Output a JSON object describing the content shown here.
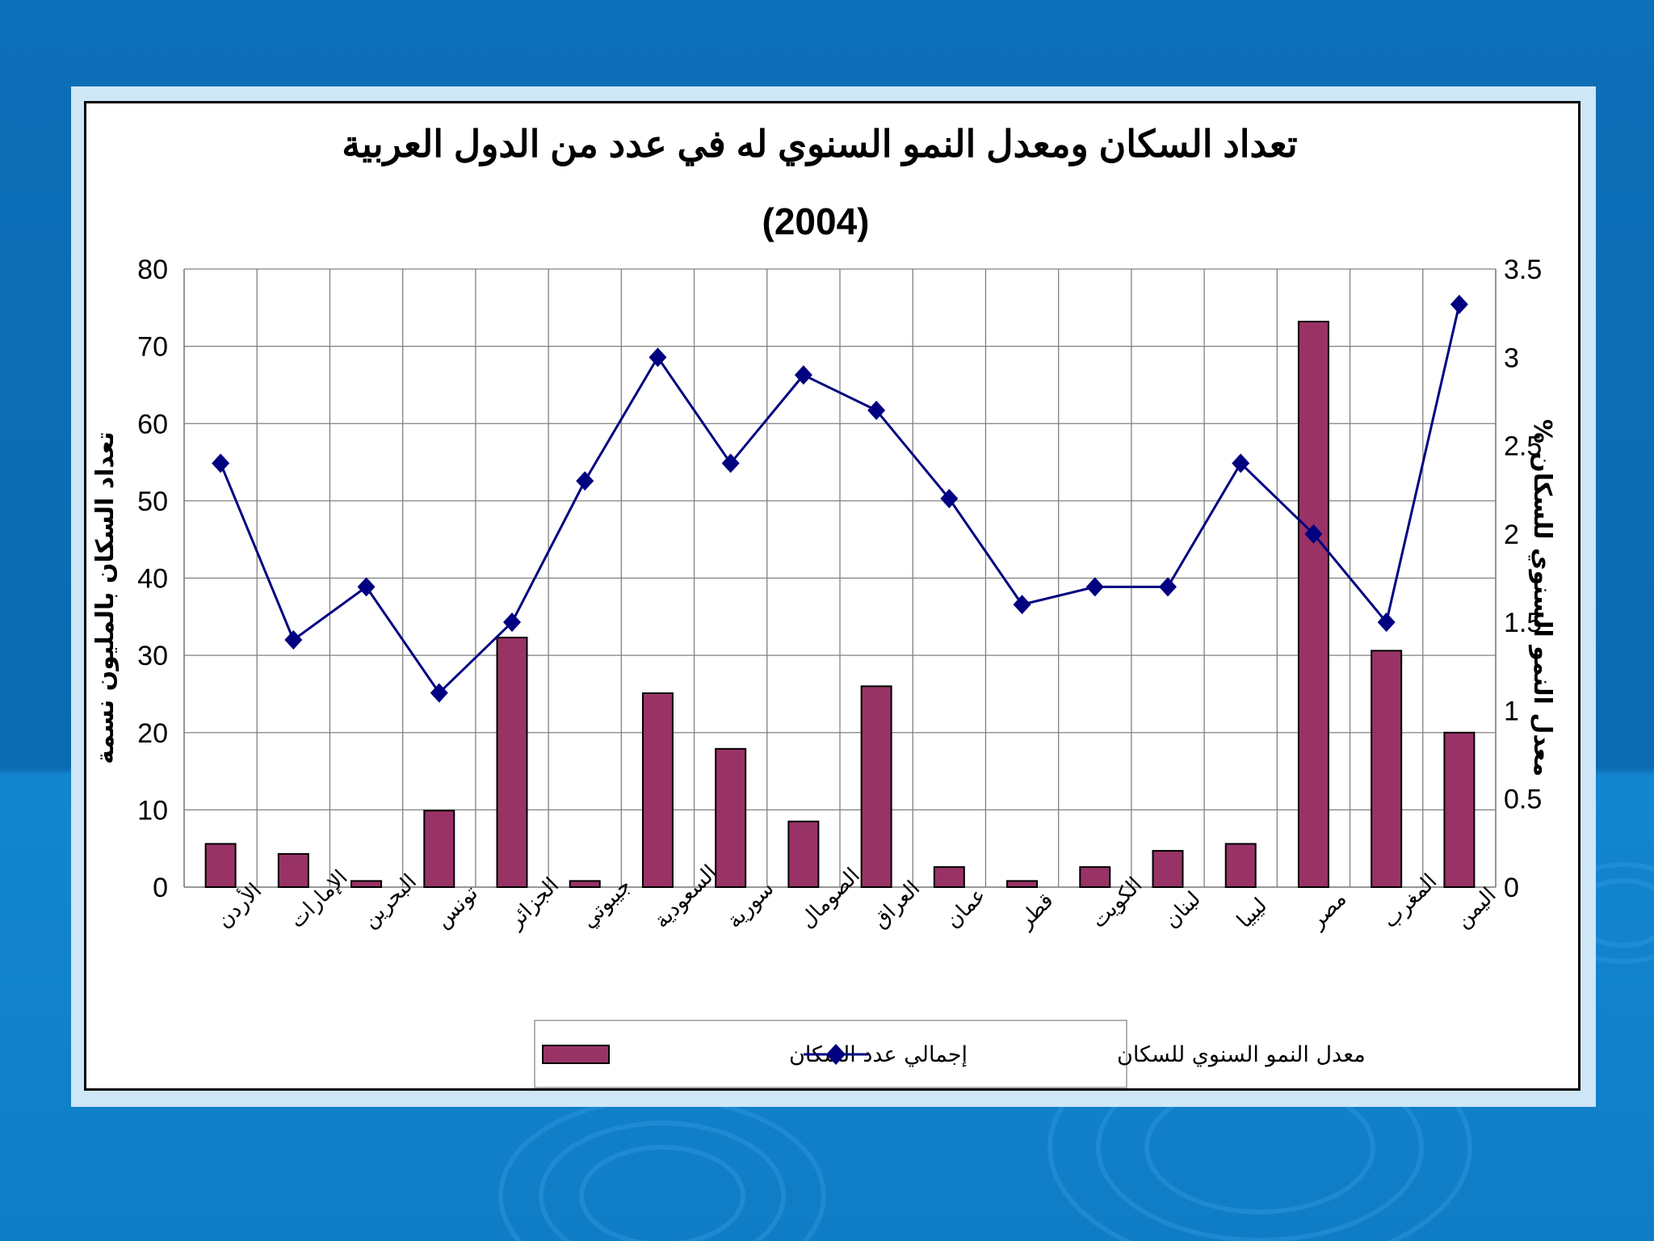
{
  "chart_data": {
    "type": "bar+line",
    "title": "تعداد السكان ومعدل النمو السنوي له في عدد من الدول العربية",
    "subtitle": "(2004)",
    "categories": [
      "الأردن",
      "الإمارات",
      "البحرين",
      "تونس",
      "الجزائر",
      "جيبوتي",
      "السعودية",
      "سورية",
      "الصومال",
      "العراق",
      "عمان",
      "قطر",
      "الكويت",
      "لبنان",
      "ليبيا",
      "مصر",
      "المغرب",
      "اليمن"
    ],
    "series": [
      {
        "name": "إجمالي عدد السكان",
        "axis": "left",
        "kind": "bar",
        "color": "#993366",
        "values": [
          5.6,
          4.3,
          0.8,
          9.9,
          32.3,
          0.8,
          25.1,
          17.9,
          8.5,
          26.0,
          2.6,
          0.8,
          2.6,
          4.7,
          5.6,
          73.2,
          30.6,
          20.0
        ]
      },
      {
        "name": "معدل النمو السنوي للسكان",
        "axis": "right",
        "kind": "line",
        "color": "#000080",
        "values": [
          2.4,
          1.4,
          1.7,
          1.1,
          1.5,
          2.3,
          3.0,
          2.4,
          2.9,
          2.7,
          2.2,
          1.6,
          1.7,
          1.7,
          2.4,
          2.0,
          1.5,
          3.3
        ]
      }
    ],
    "ylabel_left": "تعداد السكان بالمليون نسمة",
    "ylabel_right": "معدل النمو السنوي للسكان %",
    "ylim_left": [
      0,
      80
    ],
    "ylim_right": [
      0,
      3.5
    ],
    "yticks_left": [
      "0",
      "10",
      "20",
      "30",
      "40",
      "50",
      "60",
      "70",
      "80"
    ],
    "yticks_right": [
      "0",
      "0.5",
      "1",
      "1.5",
      "2",
      "2.5",
      "3",
      "3.5"
    ],
    "grid": true,
    "legend_position": "bottom-center"
  }
}
